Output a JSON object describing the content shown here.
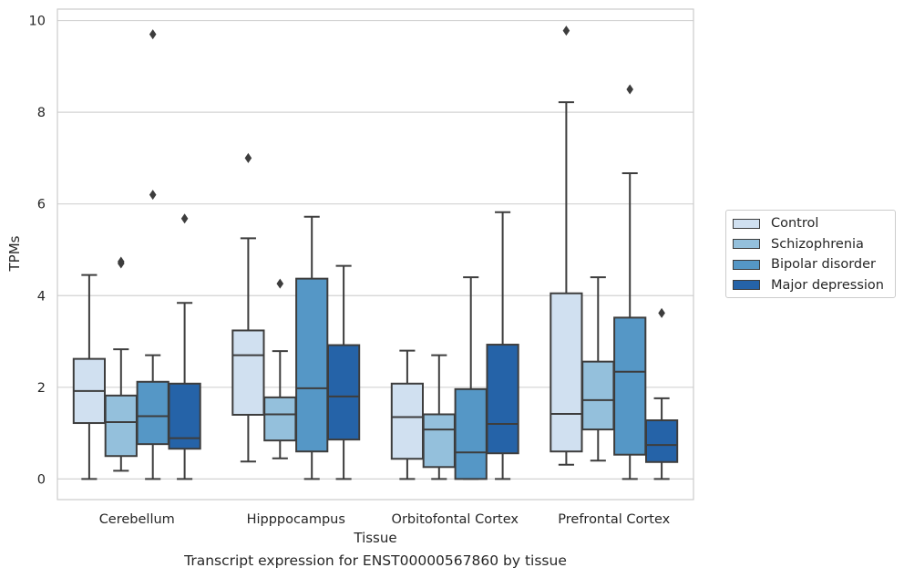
{
  "caption": "Transcript expression for ENST00000567860 by tissue",
  "chart_data": {
    "type": "box",
    "title": "",
    "xlabel": "Tissue",
    "ylabel": "TPMs",
    "ylim": [
      -0.45,
      10.25
    ],
    "yticks": [
      0,
      2,
      4,
      6,
      8,
      10
    ],
    "grid": "horizontal",
    "legend_position": "right",
    "categories": [
      "Cerebellum",
      "Hipppocampus",
      "Orbitofontal Cortex",
      "Prefrontal Cortex"
    ],
    "series": [
      {
        "name": "Control",
        "color": "#d0e0f0",
        "boxes": [
          {
            "min": 0.0,
            "q1": 1.22,
            "median": 1.92,
            "q3": 2.62,
            "max": 4.45,
            "outliers": []
          },
          {
            "min": 0.38,
            "q1": 1.4,
            "median": 2.7,
            "q3": 3.24,
            "max": 5.25,
            "outliers": [
              7.0
            ]
          },
          {
            "min": 0.0,
            "q1": 0.44,
            "median": 1.35,
            "q3": 2.08,
            "max": 2.8,
            "outliers": []
          },
          {
            "min": 0.31,
            "q1": 0.6,
            "median": 1.42,
            "q3": 4.05,
            "max": 8.22,
            "outliers": [
              9.78
            ]
          }
        ]
      },
      {
        "name": "Schizophrenia",
        "color": "#94c0dc",
        "boxes": [
          {
            "min": 0.18,
            "q1": 0.5,
            "median": 1.24,
            "q3": 1.82,
            "max": 2.83,
            "outliers": [
              4.7,
              4.74
            ]
          },
          {
            "min": 0.45,
            "q1": 0.84,
            "median": 1.41,
            "q3": 1.78,
            "max": 2.79,
            "outliers": [
              4.26
            ]
          },
          {
            "min": 0.0,
            "q1": 0.26,
            "median": 1.08,
            "q3": 1.41,
            "max": 2.7,
            "outliers": []
          },
          {
            "min": 0.4,
            "q1": 1.08,
            "median": 1.72,
            "q3": 2.56,
            "max": 4.4,
            "outliers": []
          }
        ]
      },
      {
        "name": "Bipolar disorder",
        "color": "#5597c6",
        "boxes": [
          {
            "min": 0.0,
            "q1": 0.76,
            "median": 1.37,
            "q3": 2.12,
            "max": 2.7,
            "outliers": [
              6.2,
              9.7
            ]
          },
          {
            "min": 0.0,
            "q1": 0.6,
            "median": 1.98,
            "q3": 4.37,
            "max": 5.72,
            "outliers": []
          },
          {
            "min": 0.0,
            "q1": 0.0,
            "median": 0.58,
            "q3": 1.96,
            "max": 4.4,
            "outliers": []
          },
          {
            "min": 0.0,
            "q1": 0.53,
            "median": 2.34,
            "q3": 3.52,
            "max": 6.67,
            "outliers": [
              8.5
            ]
          }
        ]
      },
      {
        "name": "Major depression",
        "color": "#2563a8",
        "boxes": [
          {
            "min": 0.0,
            "q1": 0.66,
            "median": 0.89,
            "q3": 2.08,
            "max": 3.84,
            "outliers": [
              5.68
            ]
          },
          {
            "min": 0.0,
            "q1": 0.86,
            "median": 1.8,
            "q3": 2.92,
            "max": 4.65,
            "outliers": []
          },
          {
            "min": 0.0,
            "q1": 0.56,
            "median": 1.2,
            "q3": 2.93,
            "max": 5.82,
            "outliers": []
          },
          {
            "min": 0.0,
            "q1": 0.37,
            "median": 0.74,
            "q3": 1.28,
            "max": 1.76,
            "outliers": [
              3.62
            ]
          }
        ]
      }
    ]
  }
}
